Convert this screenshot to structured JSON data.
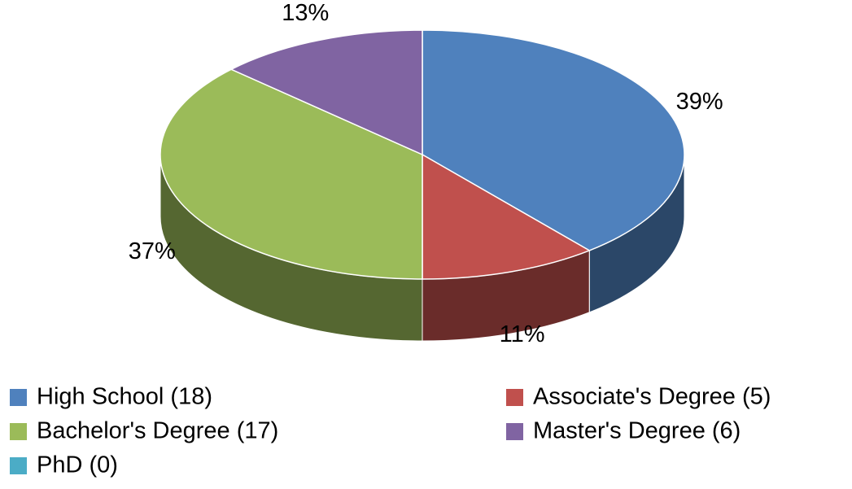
{
  "chart_data": {
    "type": "pie",
    "categories": [
      "High School (18)",
      "Associate's Degree (5)",
      "Bachelor's Degree (17)",
      "Master's Degree (6)",
      "PhD (0)"
    ],
    "values": [
      39,
      11,
      37,
      13,
      0
    ],
    "value_labels": [
      "39%",
      "11%",
      "37%",
      "13%",
      null
    ],
    "colors": [
      "#4f81bd",
      "#c0504d",
      "#9bbb59",
      "#8064a2",
      "#4bacc6"
    ],
    "legend": "bottom"
  }
}
